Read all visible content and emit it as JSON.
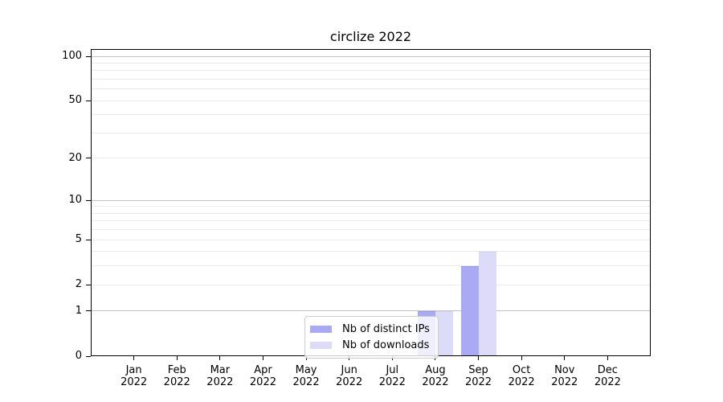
{
  "title": "circlize 2022",
  "chart_data": {
    "type": "bar",
    "title": "circlize 2022",
    "categories": [
      "Jan",
      "Feb",
      "Mar",
      "Apr",
      "May",
      "Jun",
      "Jul",
      "Aug",
      "Sep",
      "Oct",
      "Nov",
      "Dec"
    ],
    "x_year_label": "2022",
    "series": [
      {
        "name": "Nb of distinct IPs",
        "values": [
          0,
          0,
          0,
          0,
          0,
          0,
          0,
          1,
          3,
          0,
          0,
          0
        ],
        "color": "#a9a9f4",
        "edge_color": "#9b9bec"
      },
      {
        "name": "Nb of downloads",
        "values": [
          0,
          0,
          0,
          0,
          0,
          0,
          0,
          1,
          4,
          0,
          0,
          0
        ],
        "color": "#dcdcf9",
        "edge_color": "#d0d0f4"
      }
    ],
    "y_axis": {
      "scale": "log1p",
      "tick_values": [
        0,
        1,
        2,
        5,
        10,
        20,
        50,
        100
      ],
      "ylim": [
        0,
        112
      ],
      "minor_gridlines": [
        2,
        3,
        4,
        5,
        6,
        7,
        8,
        9,
        20,
        30,
        40,
        50,
        60,
        70,
        80,
        90
      ],
      "major_gridlines": [
        1,
        10,
        100
      ]
    },
    "grid": "horizontal",
    "xlabel": "",
    "ylabel": "",
    "legend_position": "lower center"
  },
  "colors": {
    "background": "#ffffff",
    "spine": "#000000",
    "grid_minor": "#ebebeb",
    "grid_major": "#c3c3c3",
    "tick_text": "#000000",
    "legend_border": "#cccccc",
    "legend_background": "rgba(255,255,255,0.8)"
  }
}
